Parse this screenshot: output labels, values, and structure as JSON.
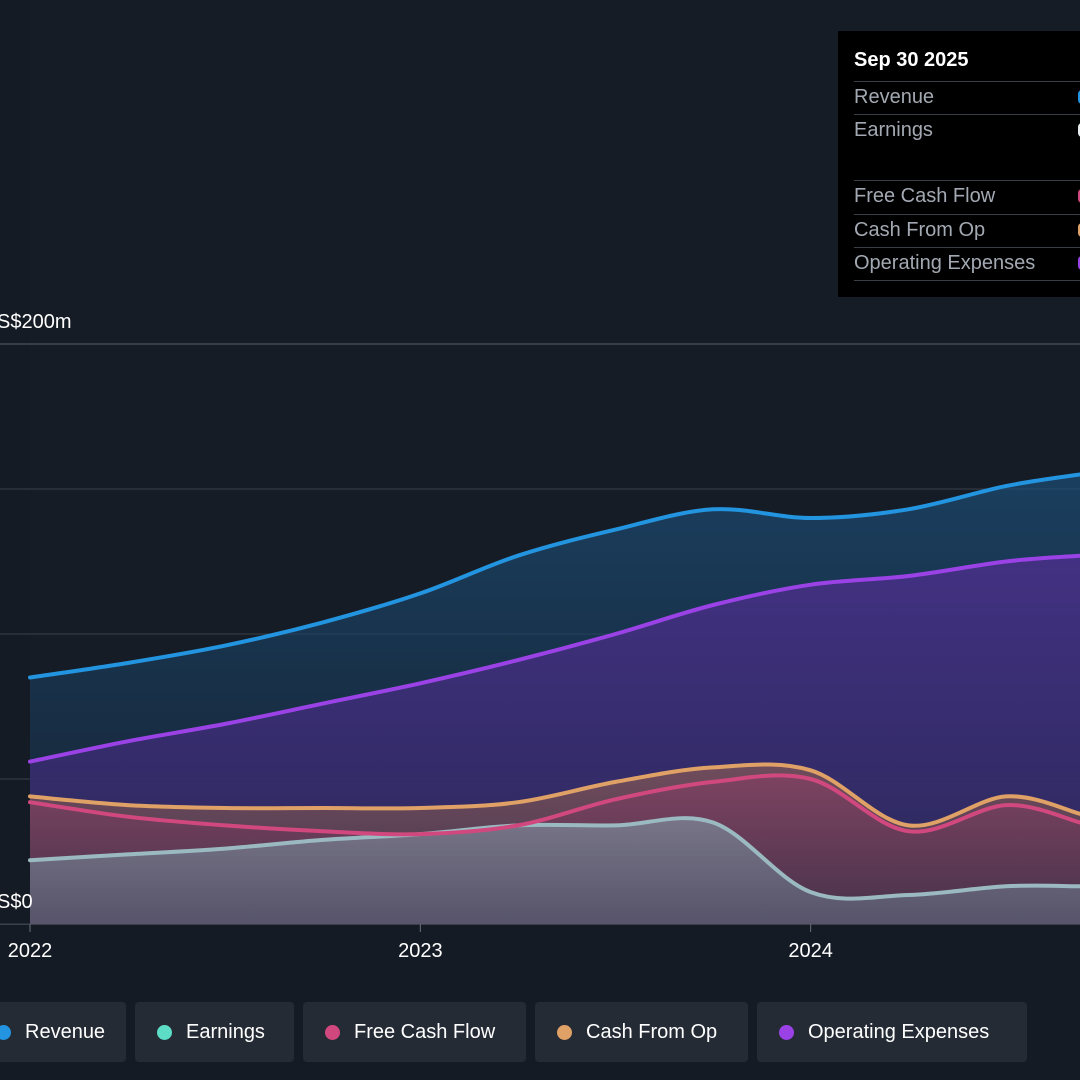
{
  "colors": {
    "background": "#151b24",
    "revenue": "#2394df",
    "earnings": "#9bb9c0",
    "free_cash_flow": "#d1487f",
    "cash_from_op": "#e0a167",
    "operating_expenses": "#9b42e7",
    "grid": "#3a414b"
  },
  "tooltip": {
    "date": "Sep 30 2025",
    "rows": [
      {
        "label": "Revenue",
        "color": "#2394df"
      },
      {
        "label": "Earnings",
        "color": "#e7ecef"
      },
      {
        "label": "Free Cash Flow",
        "color": "#d1487f"
      },
      {
        "label": "Cash From Op",
        "color": "#e0a167"
      },
      {
        "label": "Operating Expenses",
        "color": "#9b42e7"
      }
    ]
  },
  "legend": [
    {
      "label": "Revenue",
      "color": "#2394df"
    },
    {
      "label": "Earnings",
      "color": "#5ddcc6"
    },
    {
      "label": "Free Cash Flow",
      "color": "#d1487f"
    },
    {
      "label": "Cash From Op",
      "color": "#e0a167"
    },
    {
      "label": "Operating Expenses",
      "color": "#9b42e7"
    }
  ],
  "chart_data": {
    "type": "area",
    "title": "",
    "xlabel": "",
    "ylabel": "",
    "x_ticks": [
      {
        "label": "2022",
        "value": 2022
      },
      {
        "label": "2023",
        "value": 2023
      },
      {
        "label": "2024",
        "value": 2024
      }
    ],
    "y_ticks": [
      {
        "label": "S$200m",
        "value": 200
      },
      {
        "label": "S$0",
        "value": 0
      }
    ],
    "ylim": [
      0,
      200
    ],
    "xlim": [
      2022.0,
      2024.69
    ],
    "gridlines": [
      0,
      50,
      100,
      150,
      200
    ],
    "series": [
      {
        "name": "Revenue",
        "key": "revenue",
        "x": [
          2022.0,
          2022.25,
          2022.5,
          2022.75,
          2023.0,
          2023.25,
          2023.5,
          2023.75,
          2024.0,
          2024.25,
          2024.5,
          2024.69
        ],
        "y": [
          85,
          90,
          96,
          104,
          114,
          127,
          136,
          143,
          140,
          143,
          151,
          155
        ]
      },
      {
        "name": "Earnings",
        "key": "earnings",
        "x": [
          2022.0,
          2022.25,
          2022.5,
          2022.75,
          2023.0,
          2023.25,
          2023.5,
          2023.75,
          2024.0,
          2024.25,
          2024.5,
          2024.69
        ],
        "y": [
          22,
          24,
          26,
          29,
          31,
          34,
          34,
          35,
          11,
          10,
          13,
          13
        ]
      },
      {
        "name": "Free Cash Flow",
        "key": "free_cash_flow",
        "x": [
          2022.0,
          2022.25,
          2022.5,
          2022.75,
          2023.0,
          2023.25,
          2023.5,
          2023.75,
          2024.0,
          2024.25,
          2024.5,
          2024.69
        ],
        "y": [
          42,
          37,
          34,
          32,
          31,
          34,
          43,
          49,
          50,
          32,
          41,
          35
        ]
      },
      {
        "name": "Cash From Op",
        "key": "cash_from_op",
        "x": [
          2022.0,
          2022.25,
          2022.5,
          2022.75,
          2023.0,
          2023.25,
          2023.5,
          2023.75,
          2024.0,
          2024.25,
          2024.5,
          2024.69
        ],
        "y": [
          44,
          41,
          40,
          40,
          40,
          42,
          49,
          54,
          53,
          34,
          44,
          38
        ]
      },
      {
        "name": "Operating Expenses",
        "key": "operating_expenses",
        "x": [
          2022.0,
          2022.25,
          2022.5,
          2022.75,
          2023.0,
          2023.25,
          2023.5,
          2023.75,
          2024.0,
          2024.25,
          2024.5,
          2024.69
        ],
        "y": [
          56,
          63,
          69,
          76,
          83,
          91,
          100,
          110,
          117,
          120,
          125,
          127
        ]
      }
    ]
  }
}
